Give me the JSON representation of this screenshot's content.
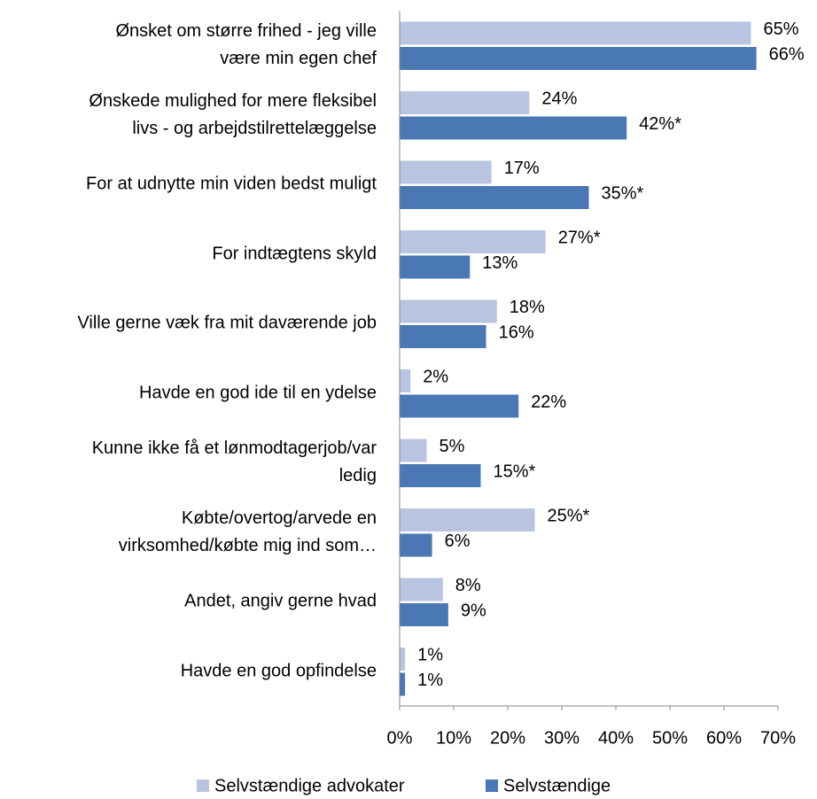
{
  "chart_data": {
    "type": "hbar",
    "categories": [
      "Ønsket om større frihed - jeg ville\nvære min egen chef",
      "Ønskede mulighed for mere fleksibel\nlivs - og arbejdstilrettelæggelse",
      "For at udnytte min viden bedst muligt",
      "For indtægtens skyld",
      "Ville gerne væk fra mit daværende job",
      "Havde en god ide til en ydelse",
      "Kunne ikke få et lønmodtagerjob/var\nledig",
      "Købte/overtog/arvede en\nvirksomhed/købte mig ind som…",
      "Andet, angiv gerne hvad",
      "Havde en god opfindelse"
    ],
    "series": [
      {
        "name": "Selvstændige advokater",
        "color": "#b9c5e0",
        "values": [
          65,
          24,
          17,
          27,
          18,
          2,
          5,
          25,
          8,
          1
        ],
        "value_labels": [
          "65%",
          "24%",
          "17%",
          "27%*",
          "18%",
          "2%",
          "5%",
          "25%*",
          "8%",
          "1%"
        ]
      },
      {
        "name": "Selvstændige",
        "color": "#4a78b4",
        "values": [
          66,
          42,
          35,
          13,
          16,
          22,
          15,
          6,
          9,
          1
        ],
        "value_labels": [
          "66%",
          "42%*",
          "35%*",
          "13%",
          "16%",
          "22%",
          "15%*",
          "6%",
          "9%",
          "1%"
        ]
      }
    ],
    "xlim": [
      0,
      70
    ],
    "xticks": [
      {
        "value": 0,
        "label": "0%"
      },
      {
        "value": 10,
        "label": "10%"
      },
      {
        "value": 20,
        "label": "20%"
      },
      {
        "value": 30,
        "label": "30%"
      },
      {
        "value": 40,
        "label": "40%"
      },
      {
        "value": 50,
        "label": "50%"
      },
      {
        "value": 60,
        "label": "60%"
      },
      {
        "value": 70,
        "label": "70%"
      }
    ],
    "legend": "bottom"
  }
}
